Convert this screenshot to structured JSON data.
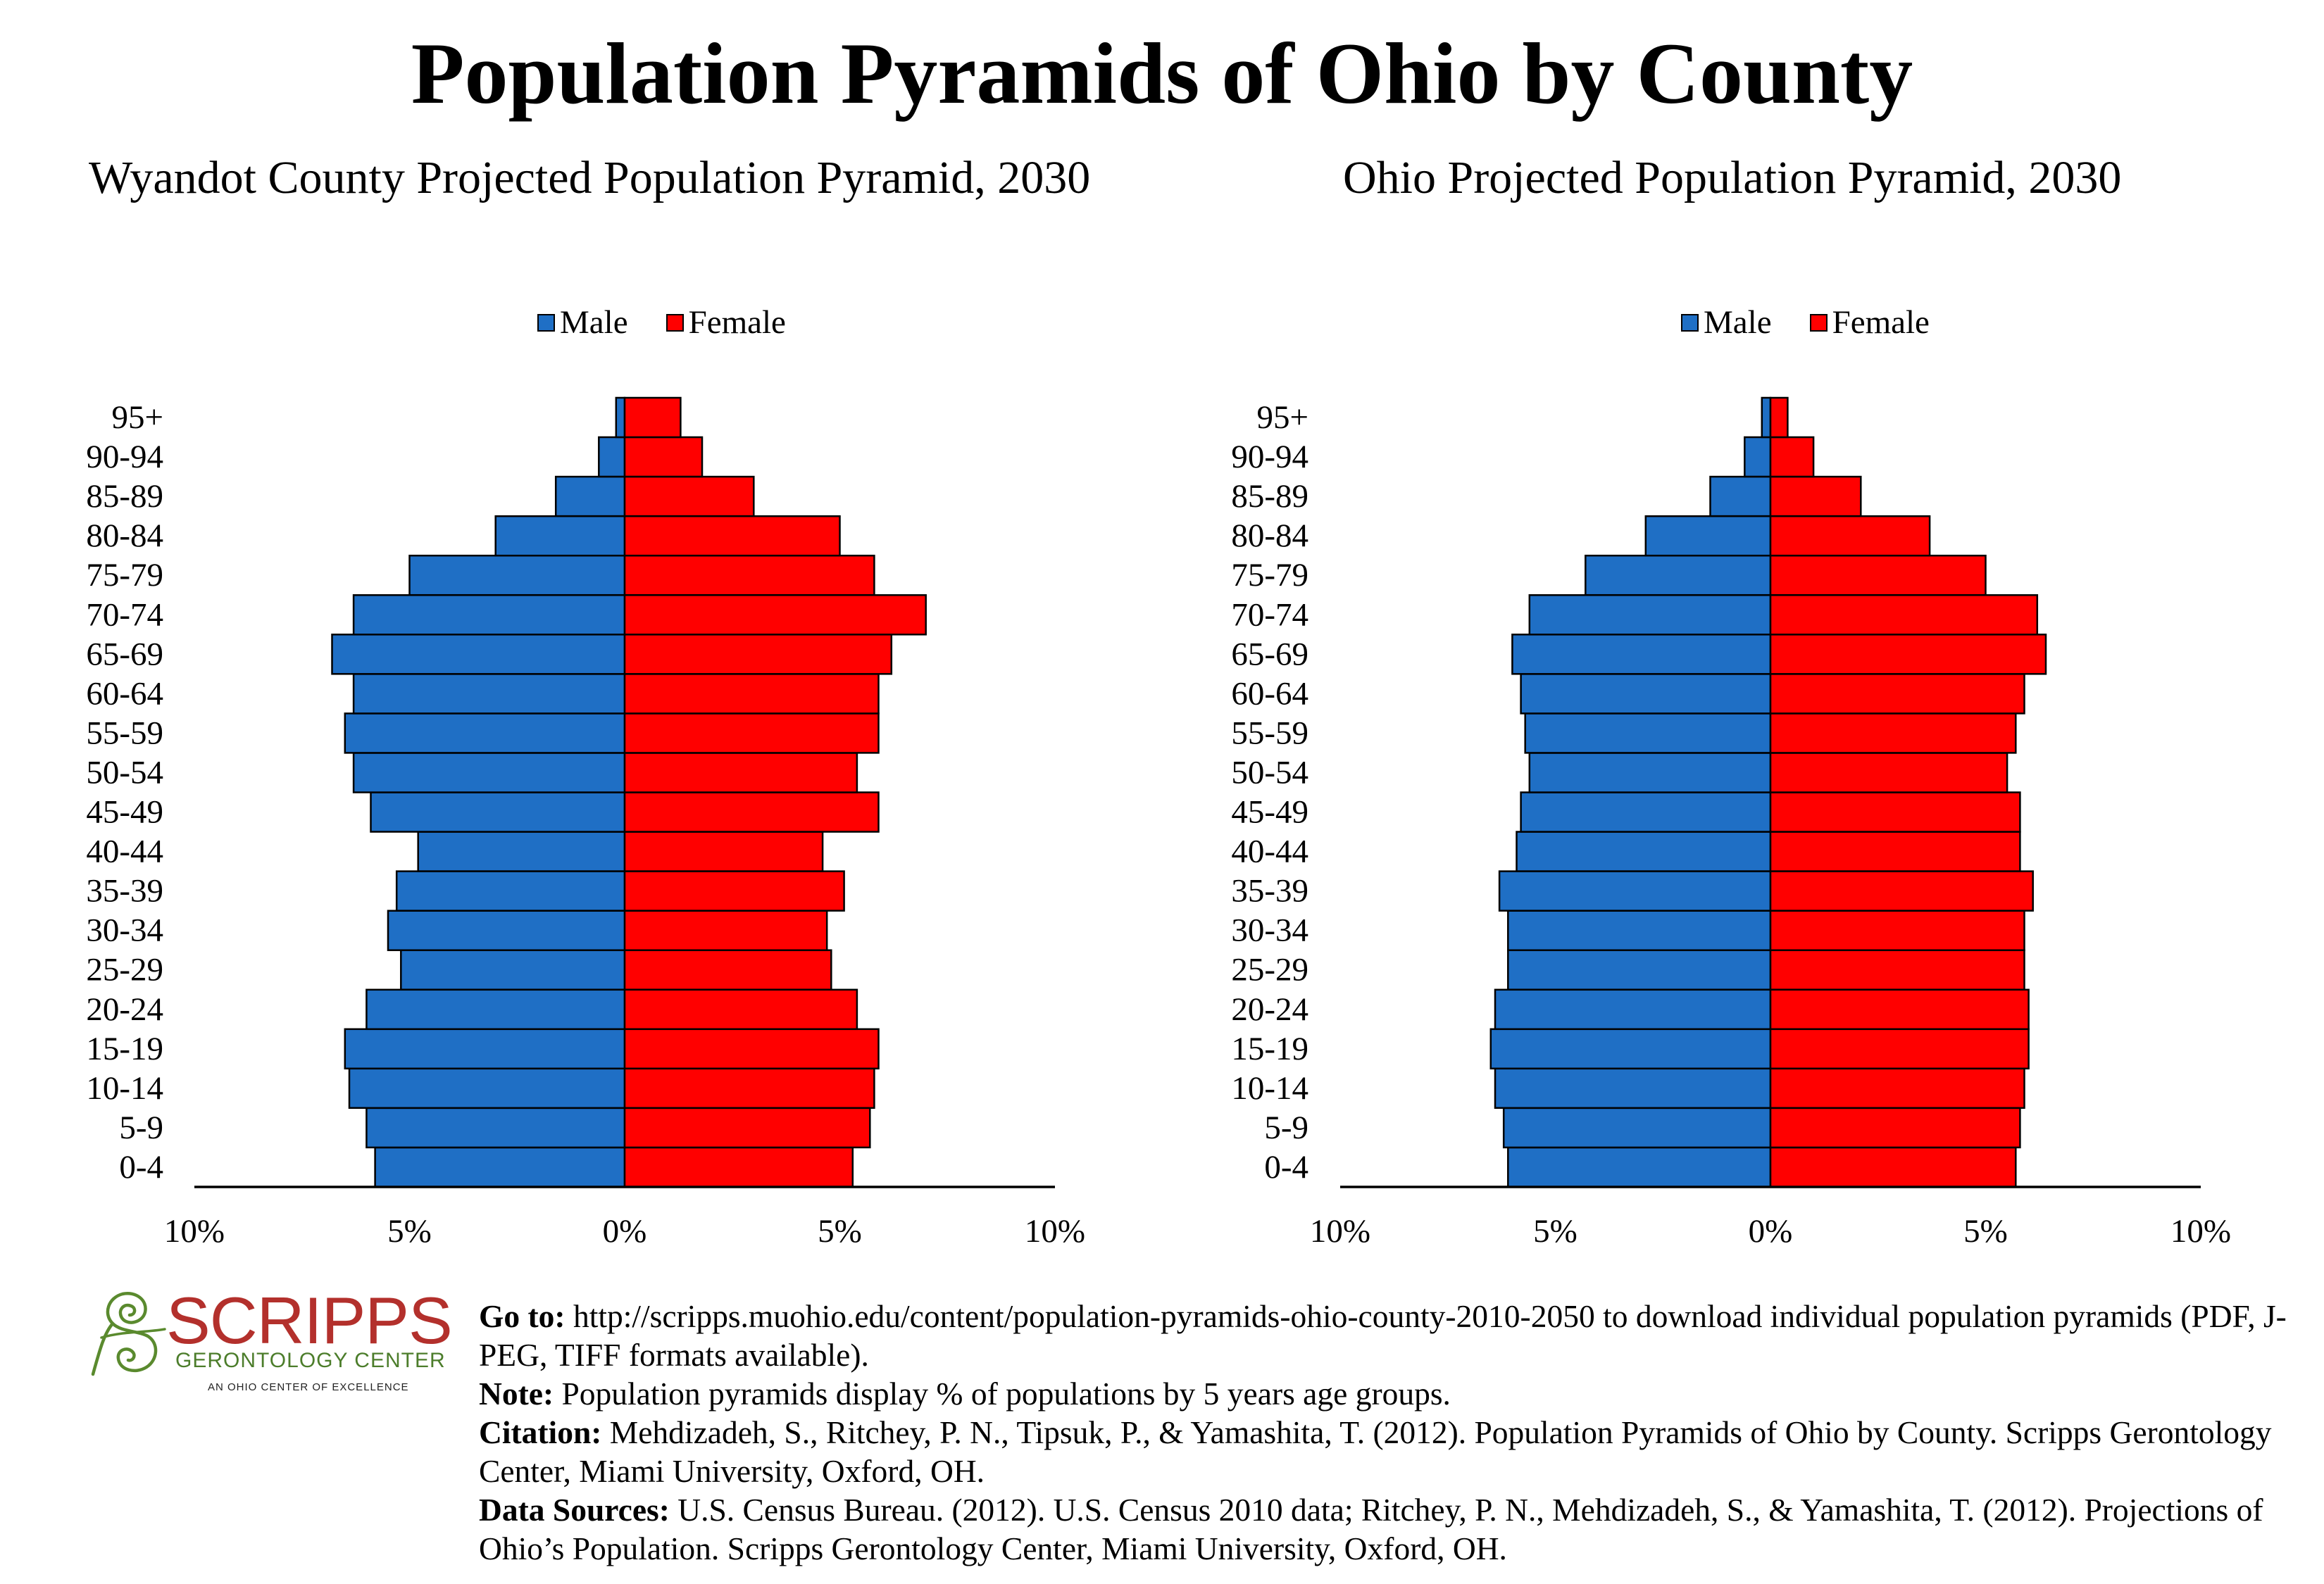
{
  "page": {
    "title": "Population Pyramids of Ohio by County"
  },
  "chart_data": [
    {
      "type": "bar",
      "title": "Wyandot County Projected Population Pyramid, 2030",
      "categories": [
        "0-4",
        "5-9",
        "10-14",
        "15-19",
        "20-24",
        "25-29",
        "30-34",
        "35-39",
        "40-44",
        "45-49",
        "50-54",
        "55-59",
        "60-64",
        "65-69",
        "70-74",
        "75-79",
        "80-84",
        "85-89",
        "90-94",
        "95+"
      ],
      "series": [
        {
          "name": "Male",
          "color": "#1f6fc5",
          "values": [
            5.8,
            6.0,
            6.4,
            6.5,
            6.0,
            5.2,
            5.5,
            5.3,
            4.8,
            5.9,
            6.3,
            6.5,
            6.3,
            6.8,
            6.3,
            5.0,
            3.0,
            1.6,
            0.6,
            0.2
          ]
        },
        {
          "name": "Female",
          "color": "#ff0000",
          "values": [
            5.3,
            5.7,
            5.8,
            5.9,
            5.4,
            4.8,
            4.7,
            5.1,
            4.6,
            5.9,
            5.4,
            5.9,
            5.9,
            6.2,
            7.0,
            5.8,
            5.0,
            3.0,
            1.8,
            1.3
          ]
        }
      ],
      "xlim": [
        -10,
        10
      ],
      "xticks": [
        -10,
        -5,
        0,
        5,
        10
      ],
      "xtick_labels": [
        "10%",
        "5%",
        "0%",
        "5%",
        "10%"
      ],
      "legend": "top",
      "grid": false
    },
    {
      "type": "bar",
      "title": "Ohio Projected Population Pyramid, 2030",
      "categories": [
        "0-4",
        "5-9",
        "10-14",
        "15-19",
        "20-24",
        "25-29",
        "30-34",
        "35-39",
        "40-44",
        "45-49",
        "50-54",
        "55-59",
        "60-64",
        "65-69",
        "70-74",
        "75-79",
        "80-84",
        "85-89",
        "90-94",
        "95+"
      ],
      "series": [
        {
          "name": "Male",
          "color": "#1f6fc5",
          "values": [
            6.1,
            6.2,
            6.4,
            6.5,
            6.4,
            6.1,
            6.1,
            6.3,
            5.9,
            5.8,
            5.6,
            5.7,
            5.8,
            6.0,
            5.6,
            4.3,
            2.9,
            1.4,
            0.6,
            0.2
          ]
        },
        {
          "name": "Female",
          "color": "#ff0000",
          "values": [
            5.7,
            5.8,
            5.9,
            6.0,
            6.0,
            5.9,
            5.9,
            6.1,
            5.8,
            5.8,
            5.5,
            5.7,
            5.9,
            6.4,
            6.2,
            5.0,
            3.7,
            2.1,
            1.0,
            0.4
          ]
        }
      ],
      "xlim": [
        -10,
        10
      ],
      "xticks": [
        -10,
        -5,
        0,
        5,
        10
      ],
      "xtick_labels": [
        "10%",
        "5%",
        "0%",
        "5%",
        "10%"
      ],
      "legend": "top",
      "grid": false
    }
  ],
  "logo": {
    "icon": "spiral-logo-icon",
    "wordmark": "SCRIPPS",
    "subtitle": "GERONTOLOGY CENTER",
    "tagline": "AN OHIO CENTER OF EXCELLENCE",
    "wordmark_color": "#b3302c",
    "accent_color": "#4c7d2b"
  },
  "footer": {
    "notes": [
      {
        "label": "Go to:",
        "text": "http://scripps.muohio.edu/content/population-pyramids-ohio-county-2010-2050 to download individual population pyramids (PDF, J-PEG, TIFF formats available)."
      },
      {
        "label": "Note:",
        "text": "Population pyramids display % of populations by 5 years age groups."
      },
      {
        "label": "Citation:",
        "text": "Mehdizadeh, S., Ritchey, P. N., Tipsuk, P., & Yamashita, T. (2012). Population Pyramids of Ohio by County. Scripps Gerontology Center, Miami University, Oxford, OH."
      },
      {
        "label": "Data Sources:",
        "text": "U.S. Census Bureau. (2012). U.S. Census 2010 data; Ritchey, P. N., Mehdizadeh, S., & Yamashita, T. (2012). Projections of Ohio’s Population. Scripps Gerontology Center, Miami University, Oxford, OH."
      }
    ]
  }
}
